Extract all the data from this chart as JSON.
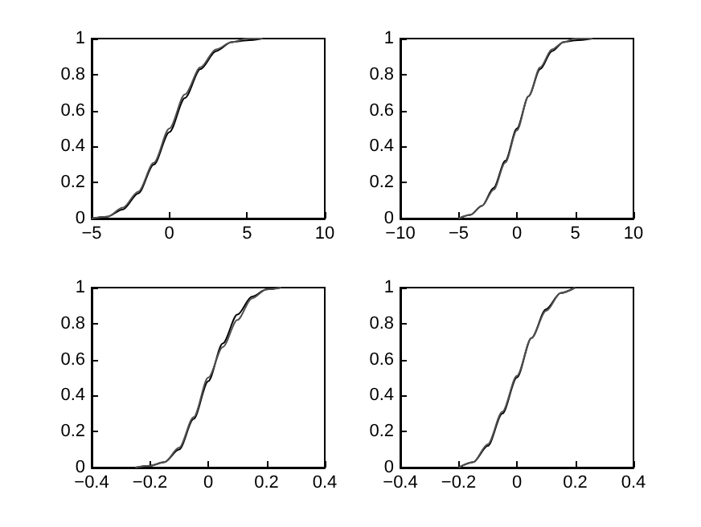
{
  "chart_data": [
    {
      "type": "line",
      "xlim": [
        -5,
        10
      ],
      "xticks": [
        -5,
        0,
        5,
        10
      ],
      "ylim": [
        0,
        1
      ],
      "yticks": [
        0,
        0.2,
        0.4,
        0.6,
        0.8,
        1
      ],
      "grid": false,
      "marker": "none",
      "line_style": "solid",
      "series": [
        {
          "color": "#000000",
          "x": [
            -5,
            -4,
            -3,
            -2,
            -1,
            0,
            1,
            2,
            3,
            4,
            5,
            6
          ],
          "values": [
            0,
            0.01,
            0.05,
            0.14,
            0.3,
            0.48,
            0.67,
            0.83,
            0.93,
            0.98,
            0.99,
            1
          ]
        },
        {
          "color": "#505050",
          "x": [
            -5,
            -4,
            -3,
            -2,
            -1,
            0,
            1,
            2,
            3,
            4,
            5,
            6
          ],
          "values": [
            0,
            0.01,
            0.06,
            0.15,
            0.31,
            0.5,
            0.69,
            0.84,
            0.94,
            0.98,
            1,
            1
          ]
        }
      ]
    },
    {
      "type": "line",
      "xlim": [
        -10,
        10
      ],
      "xticks": [
        -10,
        -5,
        0,
        5,
        10
      ],
      "ylim": [
        0,
        1
      ],
      "yticks": [
        0,
        0.2,
        0.4,
        0.6,
        0.8,
        1
      ],
      "grid": false,
      "marker": "none",
      "line_style": "solid",
      "series": [
        {
          "color": "#000000",
          "x": [
            -5,
            -4,
            -3,
            -2,
            -1,
            0,
            1,
            2,
            3,
            4,
            5,
            6.5
          ],
          "values": [
            0,
            0.02,
            0.07,
            0.17,
            0.32,
            0.5,
            0.68,
            0.83,
            0.93,
            0.98,
            0.99,
            1
          ]
        },
        {
          "color": "#505050",
          "x": [
            -5,
            -4,
            -3,
            -2,
            -1,
            0,
            1,
            2,
            3,
            4,
            5,
            6.5
          ],
          "values": [
            0,
            0.02,
            0.07,
            0.16,
            0.31,
            0.49,
            0.68,
            0.84,
            0.94,
            0.98,
            1,
            1
          ]
        }
      ]
    },
    {
      "type": "line",
      "xlim": [
        -0.4,
        0.4
      ],
      "xticks": [
        -0.4,
        -0.2,
        0,
        0.2,
        0.4
      ],
      "ylim": [
        0,
        1
      ],
      "yticks": [
        0,
        0.2,
        0.4,
        0.6,
        0.8,
        1
      ],
      "grid": false,
      "marker": "none",
      "line_style": "solid",
      "series": [
        {
          "color": "#000000",
          "x": [
            -0.25,
            -0.2,
            -0.15,
            -0.1,
            -0.05,
            0,
            0.05,
            0.1,
            0.15,
            0.2,
            0.25
          ],
          "values": [
            0,
            0.01,
            0.03,
            0.1,
            0.27,
            0.48,
            0.69,
            0.85,
            0.95,
            0.99,
            1
          ]
        },
        {
          "color": "#505050",
          "x": [
            -0.25,
            -0.2,
            -0.15,
            -0.1,
            -0.05,
            0,
            0.05,
            0.1,
            0.15,
            0.2,
            0.25
          ],
          "values": [
            0,
            0.01,
            0.03,
            0.11,
            0.28,
            0.5,
            0.67,
            0.82,
            0.94,
            0.99,
            1
          ]
        }
      ]
    },
    {
      "type": "line",
      "xlim": [
        -0.4,
        0.4
      ],
      "xticks": [
        -0.4,
        -0.2,
        0,
        0.2,
        0.4
      ],
      "ylim": [
        0,
        1
      ],
      "yticks": [
        0,
        0.2,
        0.4,
        0.6,
        0.8,
        1
      ],
      "grid": false,
      "marker": "none",
      "line_style": "solid",
      "series": [
        {
          "color": "#000000",
          "x": [
            -0.2,
            -0.15,
            -0.1,
            -0.05,
            0,
            0.05,
            0.1,
            0.15,
            0.2
          ],
          "values": [
            0,
            0.03,
            0.12,
            0.3,
            0.5,
            0.72,
            0.88,
            0.97,
            1
          ]
        },
        {
          "color": "#505050",
          "x": [
            -0.2,
            -0.15,
            -0.1,
            -0.05,
            0,
            0.05,
            0.1,
            0.15,
            0.2
          ],
          "values": [
            0,
            0.03,
            0.13,
            0.31,
            0.51,
            0.72,
            0.87,
            0.97,
            1
          ]
        }
      ]
    }
  ]
}
